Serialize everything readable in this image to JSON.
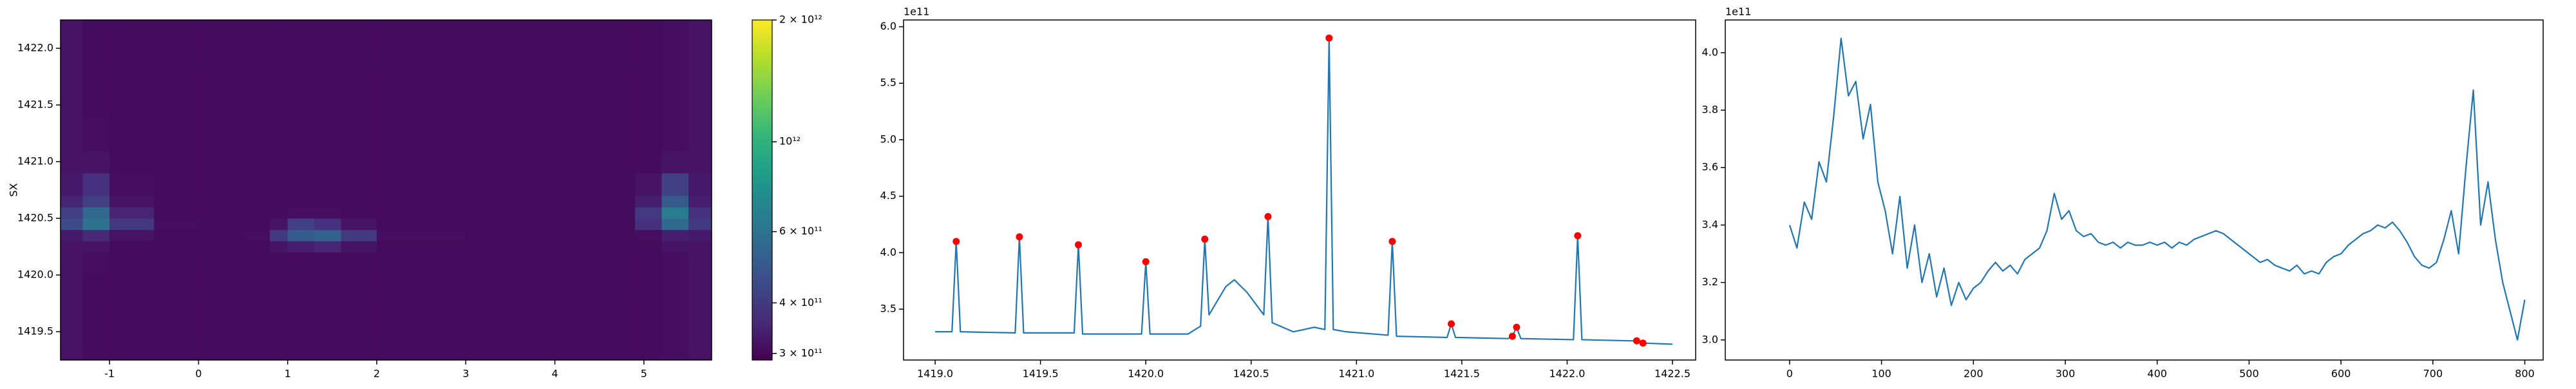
{
  "chart_data": [
    {
      "type": "heatmap",
      "ylabel": "SX",
      "xlim": [
        -1.55,
        5.76
      ],
      "ylim": [
        1419.25,
        1422.25
      ],
      "xticks": [
        -1,
        0,
        1,
        2,
        3,
        4,
        5
      ],
      "yticks": [
        1419.5,
        {
          "value": 1420,
          "label": "1420.0"
        },
        1420.5,
        {
          "value": 1421,
          "label": "1421.0"
        },
        1421.5,
        {
          "value": 1422,
          "label": "1422.0"
        }
      ],
      "x_edges": [
        -1.55,
        -1.3,
        -1.0,
        -0.5,
        0,
        0.5,
        0.8,
        1.0,
        1.3,
        1.6,
        2,
        3,
        4,
        4.9,
        5.2,
        5.5,
        5.76
      ],
      "y_edges": [
        1419.25,
        1419.4,
        1419.6,
        1419.8,
        1420.0,
        1420.2,
        1420.3,
        1420.4,
        1420.5,
        1420.6,
        1420.7,
        1420.9,
        1421.1,
        1421.4,
        1421.8,
        1422.0,
        1422.25
      ],
      "z": [
        [
          320000000000.0,
          305000000000.0,
          305000000000.0,
          305000000000.0,
          305000000000.0,
          305000000000.0,
          305000000000.0,
          305000000000.0,
          305000000000.0,
          305000000000.0,
          305000000000.0,
          305000000000.0,
          305000000000.0,
          305000000000.0,
          310000000000.0,
          320000000000.0
        ],
        [
          320000000000.0,
          305000000000.0,
          305000000000.0,
          305000000000.0,
          305000000000.0,
          305000000000.0,
          305000000000.0,
          305000000000.0,
          305000000000.0,
          305000000000.0,
          305000000000.0,
          305000000000.0,
          305000000000.0,
          305000000000.0,
          310000000000.0,
          320000000000.0
        ],
        [
          320000000000.0,
          305000000000.0,
          305000000000.0,
          305000000000.0,
          305000000000.0,
          305000000000.0,
          305000000000.0,
          305000000000.0,
          305000000000.0,
          305000000000.0,
          305000000000.0,
          305000000000.0,
          305000000000.0,
          305000000000.0,
          310000000000.0,
          320000000000.0
        ],
        [
          320000000000.0,
          305000000000.0,
          305000000000.0,
          305000000000.0,
          305000000000.0,
          305000000000.0,
          305000000000.0,
          305000000000.0,
          305000000000.0,
          305000000000.0,
          305000000000.0,
          305000000000.0,
          305000000000.0,
          305000000000.0,
          310000000000.0,
          320000000000.0
        ],
        [
          320000000000.0,
          310000000000.0,
          305000000000.0,
          305000000000.0,
          305000000000.0,
          305000000000.0,
          305000000000.0,
          305000000000.0,
          305000000000.0,
          305000000000.0,
          305000000000.0,
          305000000000.0,
          305000000000.0,
          305000000000.0,
          310000000000.0,
          320000000000.0
        ],
        [
          320000000000.0,
          320000000000.0,
          305000000000.0,
          305000000000.0,
          305000000000.0,
          305000000000.0,
          320000000000.0,
          340000000000.0,
          350000000000.0,
          320000000000.0,
          305000000000.0,
          305000000000.0,
          305000000000.0,
          305000000000.0,
          320000000000.0,
          320000000000.0
        ],
        [
          330000000000.0,
          360000000000.0,
          320000000000.0,
          305000000000.0,
          305000000000.0,
          310000000000.0,
          400000000000.0,
          500000000000.0,
          530000000000.0,
          400000000000.0,
          310000000000.0,
          305000000000.0,
          305000000000.0,
          310000000000.0,
          340000000000.0,
          330000000000.0
        ],
        [
          450000000000.0,
          600000000000.0,
          400000000000.0,
          310000000000.0,
          305000000000.0,
          305000000000.0,
          320000000000.0,
          420000000000.0,
          380000000000.0,
          320000000000.0,
          305000000000.0,
          305000000000.0,
          305000000000.0,
          380000000000.0,
          550000000000.0,
          400000000000.0
        ],
        [
          420000000000.0,
          550000000000.0,
          350000000000.0,
          305000000000.0,
          305000000000.0,
          305000000000.0,
          305000000000.0,
          310000000000.0,
          310000000000.0,
          305000000000.0,
          305000000000.0,
          305000000000.0,
          305000000000.0,
          400000000000.0,
          650000000000.0,
          380000000000.0
        ],
        [
          350000000000.0,
          420000000000.0,
          320000000000.0,
          305000000000.0,
          305000000000.0,
          305000000000.0,
          305000000000.0,
          305000000000.0,
          305000000000.0,
          305000000000.0,
          305000000000.0,
          305000000000.0,
          305000000000.0,
          340000000000.0,
          500000000000.0,
          340000000000.0
        ],
        [
          330000000000.0,
          380000000000.0,
          310000000000.0,
          305000000000.0,
          305000000000.0,
          305000000000.0,
          305000000000.0,
          305000000000.0,
          305000000000.0,
          305000000000.0,
          305000000000.0,
          305000000000.0,
          305000000000.0,
          320000000000.0,
          420000000000.0,
          330000000000.0
        ],
        [
          320000000000.0,
          320000000000.0,
          305000000000.0,
          305000000000.0,
          305000000000.0,
          305000000000.0,
          305000000000.0,
          305000000000.0,
          305000000000.0,
          305000000000.0,
          305000000000.0,
          305000000000.0,
          305000000000.0,
          305000000000.0,
          320000000000.0,
          320000000000.0
        ],
        [
          320000000000.0,
          310000000000.0,
          305000000000.0,
          305000000000.0,
          305000000000.0,
          305000000000.0,
          305000000000.0,
          305000000000.0,
          305000000000.0,
          305000000000.0,
          305000000000.0,
          305000000000.0,
          305000000000.0,
          305000000000.0,
          310000000000.0,
          320000000000.0
        ],
        [
          320000000000.0,
          305000000000.0,
          305000000000.0,
          305000000000.0,
          305000000000.0,
          305000000000.0,
          305000000000.0,
          305000000000.0,
          305000000000.0,
          305000000000.0,
          305000000000.0,
          305000000000.0,
          305000000000.0,
          305000000000.0,
          310000000000.0,
          320000000000.0
        ],
        [
          320000000000.0,
          305000000000.0,
          305000000000.0,
          305000000000.0,
          305000000000.0,
          305000000000.0,
          305000000000.0,
          305000000000.0,
          305000000000.0,
          305000000000.0,
          305000000000.0,
          305000000000.0,
          305000000000.0,
          305000000000.0,
          310000000000.0,
          320000000000.0
        ],
        [
          320000000000.0,
          305000000000.0,
          305000000000.0,
          305000000000.0,
          305000000000.0,
          305000000000.0,
          305000000000.0,
          305000000000.0,
          305000000000.0,
          305000000000.0,
          305000000000.0,
          305000000000.0,
          305000000000.0,
          305000000000.0,
          310000000000.0,
          320000000000.0
        ]
      ],
      "colormap": "viridis",
      "colorbar": {
        "scale": "log",
        "clim": [
          289000000000.0,
          2000000000000.0
        ],
        "ticks": [
          {
            "value": 300000000000.0,
            "label": "3 × 10¹¹"
          },
          {
            "value": 400000000000.0,
            "label": "4 × 10¹¹"
          },
          {
            "value": 600000000000.0,
            "label": "6 × 10¹¹"
          },
          {
            "value": 1000000000000.0,
            "label": "10¹²"
          },
          {
            "value": 2000000000000.0,
            "label": "2 × 10¹²"
          }
        ]
      }
    },
    {
      "type": "line",
      "y_offset": "1e11",
      "xlim": [
        1418.85,
        1422.61
      ],
      "ylim": [
        3.05,
        6.06
      ],
      "xticks": [
        {
          "value": 1419,
          "label": "1419.0"
        },
        1419.5,
        {
          "value": 1420,
          "label": "1420.0"
        },
        1420.5,
        {
          "value": 1421,
          "label": "1421.0"
        },
        1421.5,
        {
          "value": 1422,
          "label": "1422.0"
        },
        1422.5
      ],
      "yticks": [
        3.5,
        {
          "value": 4,
          "label": "4.0"
        },
        4.5,
        {
          "value": 5,
          "label": "5.0"
        },
        5.5,
        {
          "value": 6,
          "label": "6.0"
        }
      ],
      "series": [
        {
          "color": "#1f77b4",
          "style": "line",
          "x": [
            1419.0,
            1419.08,
            1419.1,
            1419.12,
            1419.38,
            1419.4,
            1419.42,
            1419.66,
            1419.68,
            1419.7,
            1419.98,
            1420.0,
            1420.02,
            1420.2,
            1420.26,
            1420.28,
            1420.3,
            1420.38,
            1420.42,
            1420.48,
            1420.54,
            1420.56,
            1420.58,
            1420.6,
            1420.7,
            1420.8,
            1420.85,
            1420.87,
            1420.89,
            1420.95,
            1421.15,
            1421.17,
            1421.19,
            1421.43,
            1421.45,
            1421.47,
            1421.72,
            1421.74,
            1421.76,
            1421.78,
            1422.03,
            1422.05,
            1422.07,
            1422.3,
            1422.33,
            1422.36,
            1422.5
          ],
          "values": [
            3.3,
            3.3,
            4.1,
            3.3,
            3.29,
            4.14,
            3.29,
            3.29,
            4.07,
            3.28,
            3.28,
            3.92,
            3.28,
            3.28,
            3.35,
            4.12,
            3.45,
            3.7,
            3.76,
            3.65,
            3.5,
            3.45,
            4.32,
            3.38,
            3.3,
            3.34,
            3.32,
            5.9,
            3.32,
            3.3,
            3.27,
            4.1,
            3.26,
            3.25,
            3.37,
            3.25,
            3.24,
            3.26,
            3.34,
            3.24,
            3.23,
            4.15,
            3.23,
            3.22,
            3.22,
            3.2,
            3.19
          ]
        },
        {
          "color": "#ff0000",
          "style": "markers",
          "x": [
            1419.1,
            1419.4,
            1419.68,
            1420.0,
            1420.28,
            1420.58,
            1420.87,
            1421.17,
            1421.45,
            1421.74,
            1421.76,
            1422.05,
            1422.33,
            1422.36
          ],
          "values": [
            4.1,
            4.14,
            4.07,
            3.92,
            4.12,
            4.32,
            5.9,
            4.1,
            3.37,
            3.26,
            3.34,
            4.15,
            3.22,
            3.2
          ]
        }
      ]
    },
    {
      "type": "line",
      "y_offset": "1e11",
      "xlim": [
        -70,
        820
      ],
      "ylim": [
        2.93,
        4.114
      ],
      "xticks": [
        0,
        100,
        200,
        300,
        400,
        500,
        600,
        700,
        800
      ],
      "yticks": [
        {
          "value": 3,
          "label": "3.0"
        },
        3.2,
        3.4,
        3.6,
        3.8,
        {
          "value": 4,
          "label": "4.0"
        }
      ],
      "series": [
        {
          "color": "#1f77b4",
          "style": "line",
          "x": [
            0,
            8,
            16,
            24,
            32,
            40,
            48,
            56,
            64,
            72,
            80,
            88,
            96,
            104,
            112,
            120,
            128,
            136,
            144,
            152,
            160,
            168,
            176,
            184,
            192,
            200,
            208,
            216,
            224,
            232,
            240,
            248,
            256,
            264,
            272,
            280,
            288,
            296,
            304,
            312,
            320,
            328,
            336,
            344,
            352,
            360,
            368,
            376,
            384,
            392,
            400,
            408,
            416,
            424,
            432,
            440,
            448,
            456,
            464,
            472,
            480,
            488,
            496,
            504,
            512,
            520,
            528,
            536,
            544,
            552,
            560,
            568,
            576,
            584,
            592,
            600,
            608,
            616,
            624,
            632,
            640,
            648,
            656,
            664,
            672,
            680,
            688,
            696,
            704,
            712,
            720,
            728,
            736,
            744,
            752,
            760,
            768,
            776,
            784,
            792,
            800
          ],
          "values": [
            3.4,
            3.32,
            3.48,
            3.42,
            3.62,
            3.55,
            3.78,
            4.05,
            3.85,
            3.9,
            3.7,
            3.82,
            3.55,
            3.45,
            3.3,
            3.5,
            3.25,
            3.4,
            3.2,
            3.3,
            3.15,
            3.25,
            3.12,
            3.2,
            3.14,
            3.18,
            3.2,
            3.24,
            3.27,
            3.24,
            3.26,
            3.23,
            3.28,
            3.3,
            3.32,
            3.38,
            3.51,
            3.42,
            3.45,
            3.38,
            3.36,
            3.37,
            3.34,
            3.33,
            3.34,
            3.32,
            3.34,
            3.33,
            3.33,
            3.34,
            3.33,
            3.34,
            3.32,
            3.34,
            3.33,
            3.35,
            3.36,
            3.37,
            3.38,
            3.37,
            3.35,
            3.33,
            3.31,
            3.29,
            3.27,
            3.28,
            3.26,
            3.25,
            3.24,
            3.26,
            3.23,
            3.24,
            3.23,
            3.27,
            3.29,
            3.3,
            3.33,
            3.35,
            3.37,
            3.38,
            3.4,
            3.39,
            3.41,
            3.38,
            3.34,
            3.29,
            3.26,
            3.25,
            3.27,
            3.35,
            3.45,
            3.3,
            3.6,
            3.87,
            3.4,
            3.55,
            3.35,
            3.2,
            3.1,
            3.0,
            3.14
          ]
        }
      ]
    }
  ]
}
